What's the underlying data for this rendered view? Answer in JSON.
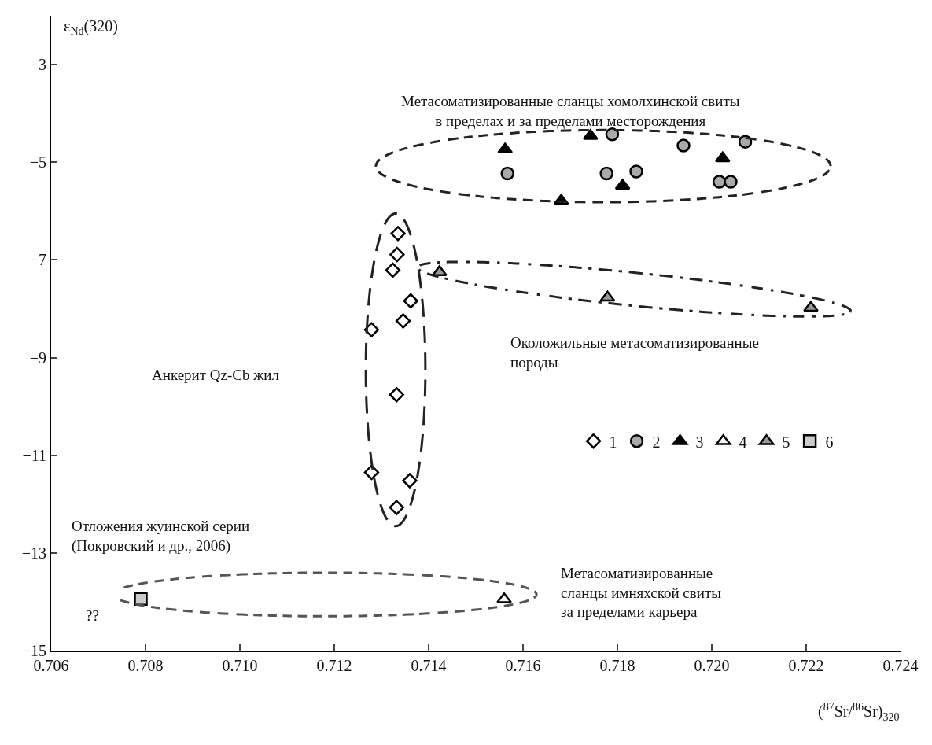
{
  "chart_data": {
    "type": "scatter",
    "xlabel": "($^{87}$Sr/$^{86}$Sr)$_{320}$",
    "ylabel": "ε$_{Nd}$(320)",
    "xlim": [
      0.706,
      0.724
    ],
    "ylim": [
      -15,
      -2
    ],
    "xticks": [
      0.706,
      0.708,
      {
        "value": 0.71,
        "label": "0.710"
      },
      0.712,
      0.714,
      0.716,
      0.718,
      {
        "value": 0.72,
        "label": "0.720"
      },
      0.722,
      0.724
    ],
    "yticks": [
      {
        "value": -3,
        "label": "−3"
      },
      {
        "value": -5,
        "label": "−5"
      },
      {
        "value": -7,
        "label": "−7"
      },
      {
        "value": -9,
        "label": "−9"
      },
      {
        "value": -11,
        "label": "−11"
      },
      {
        "value": -13,
        "label": "−13"
      },
      {
        "value": -15,
        "label": "−15"
      }
    ],
    "legend": "right",
    "series": [
      {
        "name": "1",
        "color": "#ffffff",
        "marker": "diamond",
        "x": [
          0.71335,
          0.71333,
          0.71324,
          0.71362,
          0.71346,
          0.71279,
          0.71332,
          0.71279,
          0.7136,
          0.71332
        ],
        "values": [
          -6.46,
          -6.89,
          -7.21,
          -7.84,
          -8.25,
          -8.43,
          -9.76,
          -11.35,
          -11.52,
          -12.07
        ]
      },
      {
        "name": "2",
        "color": "#aaaaaa",
        "marker": "circle",
        "x": [
          0.71789,
          0.71567,
          0.71777,
          0.7184,
          0.7194,
          0.72071,
          0.72016,
          0.7204
        ],
        "values": [
          -4.43,
          -5.23,
          -5.23,
          -5.19,
          -4.66,
          -4.58,
          -5.4,
          -5.4
        ]
      },
      {
        "name": "3",
        "color": "#000000",
        "marker": "triangle",
        "x": [
          0.71562,
          0.71743,
          0.71811,
          0.71681,
          0.72023
        ],
        "values": [
          -4.74,
          -4.46,
          -5.48,
          -5.79,
          -4.92
        ]
      },
      {
        "name": "4",
        "color": "#ffffff",
        "marker": "triangle",
        "x": [
          0.7156
        ],
        "values": [
          -13.95
        ]
      },
      {
        "name": "5",
        "color": "#999999",
        "marker": "triangle",
        "x": [
          0.71423,
          0.71779,
          0.7221
        ],
        "values": [
          -7.25,
          -7.77,
          -7.98
        ]
      },
      {
        "name": "6",
        "color": "#cccccc",
        "marker": "square",
        "x": [
          0.7079
        ],
        "values": [
          -13.94
        ]
      }
    ],
    "annotations": [
      "Метасоматизированные сланцы хомолхинской свиты\nв пределах и за пределами месторождения",
      "Околожильные метасоматизированные\nпороды",
      "Анкерит Qz-Cb жил",
      "Отложения жуинской серии\n(Покровский и др., 2006)",
      "??",
      "Метасоматизированные\nсланцы имняхской свиты\nза пределами карьера"
    ]
  }
}
